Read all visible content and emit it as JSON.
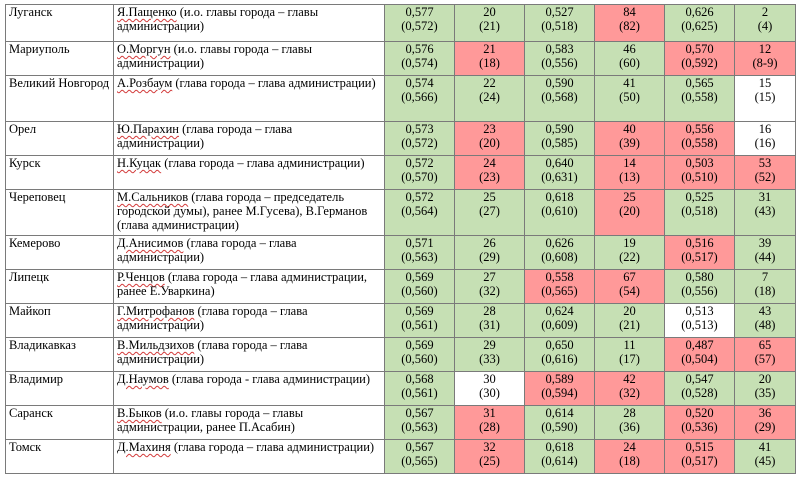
{
  "colors": {
    "green": "#c6e0b4",
    "red": "#ff9999",
    "white": "#ffffff",
    "border": "#7a7a7a",
    "spell_underline": "#d23a3a"
  },
  "rows": [
    {
      "city": "Луганск",
      "name": "Я.Пащенко",
      "rest": " (и.о. главы города – главы администрации)",
      "cells": [
        {
          "a": "0,577",
          "b": "(0,572)",
          "c": "green"
        },
        {
          "a": "20",
          "b": "(21)",
          "c": "green"
        },
        {
          "a": "0,527",
          "b": "(0,518)",
          "c": "green"
        },
        {
          "a": "84",
          "b": "(82)",
          "c": "red"
        },
        {
          "a": "0,626",
          "b": "(0,625)",
          "c": "green"
        },
        {
          "a": "2",
          "b": "(4)",
          "c": "green"
        }
      ]
    },
    {
      "city": "Мариуполь",
      "name": "О.Моргун",
      "rest": " (и.о. главы города – главы администрации)",
      "cells": [
        {
          "a": "0,576",
          "b": "(0,574)",
          "c": "green"
        },
        {
          "a": "21",
          "b": "(18)",
          "c": "red"
        },
        {
          "a": "0,583",
          "b": "(0,556)",
          "c": "green"
        },
        {
          "a": "46",
          "b": "(60)",
          "c": "green"
        },
        {
          "a": "0,570",
          "b": "(0,592)",
          "c": "red"
        },
        {
          "a": "12",
          "b": "(8-9)",
          "c": "red"
        }
      ]
    },
    {
      "city": "Великий Новгород",
      "name": "А.Розбаум",
      "rest": " (глава города – глава администрации)",
      "cells": [
        {
          "a": "0,574",
          "b": "(0,566)",
          "c": "green"
        },
        {
          "a": "22",
          "b": "(24)",
          "c": "green"
        },
        {
          "a": "0,590",
          "b": "(0,568)",
          "c": "green"
        },
        {
          "a": "41",
          "b": "(50)",
          "c": "green"
        },
        {
          "a": "0,565",
          "b": "(0,558)",
          "c": "green"
        },
        {
          "a": "15",
          "b": "(15)",
          "c": "white"
        }
      ]
    },
    {
      "city": "Орел",
      "name": "Ю.Парахин",
      "rest": " (глава города – глава администрации)",
      "cells": [
        {
          "a": "0,573",
          "b": "(0,572)",
          "c": "green"
        },
        {
          "a": "23",
          "b": "(20)",
          "c": "red"
        },
        {
          "a": "0,590",
          "b": "(0,585)",
          "c": "green"
        },
        {
          "a": "40",
          "b": "(39)",
          "c": "red"
        },
        {
          "a": "0,556",
          "b": "(0,558)",
          "c": "red"
        },
        {
          "a": "16",
          "b": "(16)",
          "c": "white"
        }
      ]
    },
    {
      "city": "Курск",
      "name": "Н.Куцак",
      "rest": " (глава города – глава администрации)",
      "cells": [
        {
          "a": "0,572",
          "b": "(0,570)",
          "c": "green"
        },
        {
          "a": "24",
          "b": "(23)",
          "c": "red"
        },
        {
          "a": "0,640",
          "b": "(0,631)",
          "c": "green"
        },
        {
          "a": "14",
          "b": "(13)",
          "c": "red"
        },
        {
          "a": "0,503",
          "b": "(0,510)",
          "c": "red"
        },
        {
          "a": "53",
          "b": "(52)",
          "c": "red"
        }
      ]
    },
    {
      "city": "Череповец",
      "name": "М.Сальников",
      "rest": " (глава города – председатель городской думы), ранее М.Гусева), В.Германов (глава администрации)",
      "cells": [
        {
          "a": "0,572",
          "b": "(0,564)",
          "c": "green"
        },
        {
          "a": "25",
          "b": "(27)",
          "c": "green"
        },
        {
          "a": "0,618",
          "b": "(0,610)",
          "c": "green"
        },
        {
          "a": "25",
          "b": "(20)",
          "c": "red"
        },
        {
          "a": "0,525",
          "b": "(0,518)",
          "c": "green"
        },
        {
          "a": "31",
          "b": "(43)",
          "c": "green"
        }
      ]
    },
    {
      "city": "Кемерово",
      "name": "Д.Анисимов",
      "rest": " (глава города – глава администрации)",
      "cells": [
        {
          "a": "0,571",
          "b": "(0,563)",
          "c": "green"
        },
        {
          "a": "26",
          "b": "(29)",
          "c": "green"
        },
        {
          "a": "0,626",
          "b": "(0,608)",
          "c": "green"
        },
        {
          "a": "19",
          "b": "(22)",
          "c": "green"
        },
        {
          "a": "0,516",
          "b": "(0,517)",
          "c": "red"
        },
        {
          "a": "39",
          "b": "(44)",
          "c": "green"
        }
      ]
    },
    {
      "city": "Липецк",
      "name": "Р.Ченцов",
      "rest": " (глава города – глава администрации, ранее Е.Уваркина)",
      "cells": [
        {
          "a": "0,569",
          "b": "(0,560)",
          "c": "green"
        },
        {
          "a": "27",
          "b": "(32)",
          "c": "green"
        },
        {
          "a": "0,558",
          "b": "(0,565)",
          "c": "red"
        },
        {
          "a": "67",
          "b": "(54)",
          "c": "red"
        },
        {
          "a": "0,580",
          "b": "(0,556)",
          "c": "green"
        },
        {
          "a": "7",
          "b": "(18)",
          "c": "green"
        }
      ]
    },
    {
      "city": "Майкоп",
      "name": "Г.Митрофанов",
      "rest": " (глава города – глава администрации)",
      "cells": [
        {
          "a": "0,569",
          "b": "(0,561)",
          "c": "green"
        },
        {
          "a": "28",
          "b": "(31)",
          "c": "green"
        },
        {
          "a": "0,624",
          "b": "(0,609)",
          "c": "green"
        },
        {
          "a": "20",
          "b": "(21)",
          "c": "green"
        },
        {
          "a": "0,513",
          "b": "(0,513)",
          "c": "white"
        },
        {
          "a": "43",
          "b": "(48)",
          "c": "green"
        }
      ]
    },
    {
      "city": "Владикавказ",
      "name": "В.Мильдзихов",
      "rest": " (глава города – глава администрации)",
      "cells": [
        {
          "a": "0,569",
          "b": "(0,560)",
          "c": "green"
        },
        {
          "a": "29",
          "b": "(33)",
          "c": "green"
        },
        {
          "a": "0,650",
          "b": "(0,616)",
          "c": "green"
        },
        {
          "a": "11",
          "b": "(17)",
          "c": "green"
        },
        {
          "a": "0,487",
          "b": "(0,504)",
          "c": "red"
        },
        {
          "a": "65",
          "b": "(57)",
          "c": "red"
        }
      ]
    },
    {
      "city": "Владимир",
      "name": "Д.Наумов",
      "rest": " (глава города - глава администрации)",
      "cells": [
        {
          "a": "0,568",
          "b": "(0,561)",
          "c": "green"
        },
        {
          "a": "30",
          "b": "(30)",
          "c": "white"
        },
        {
          "a": "0,589",
          "b": "(0,594)",
          "c": "red"
        },
        {
          "a": "42",
          "b": "(32)",
          "c": "red"
        },
        {
          "a": "0,547",
          "b": "(0,528)",
          "c": "green"
        },
        {
          "a": "20",
          "b": "(35)",
          "c": "green"
        }
      ]
    },
    {
      "city": "Саранск",
      "name": "В.Быков",
      "rest": " (и.о. главы города – главы администрации, ранее П.Асабин)",
      "cells": [
        {
          "a": "0,567",
          "b": "(0,563)",
          "c": "green"
        },
        {
          "a": "31",
          "b": "(28)",
          "c": "red"
        },
        {
          "a": "0,614",
          "b": "(0,590)",
          "c": "green"
        },
        {
          "a": "28",
          "b": "(36)",
          "c": "green"
        },
        {
          "a": "0,520",
          "b": "(0,536)",
          "c": "red"
        },
        {
          "a": "36",
          "b": "(29)",
          "c": "red"
        }
      ]
    },
    {
      "city": "Томск",
      "name": "Д.Махиня",
      "rest": " (глава города – глава администрации)",
      "cells": [
        {
          "a": "0,567",
          "b": "(0,565)",
          "c": "green"
        },
        {
          "a": "32",
          "b": "(25)",
          "c": "red"
        },
        {
          "a": "0,618",
          "b": "(0,614)",
          "c": "green"
        },
        {
          "a": "24",
          "b": "(18)",
          "c": "red"
        },
        {
          "a": "0,515",
          "b": "(0,517)",
          "c": "red"
        },
        {
          "a": "41",
          "b": "(45)",
          "c": "green"
        }
      ]
    }
  ]
}
